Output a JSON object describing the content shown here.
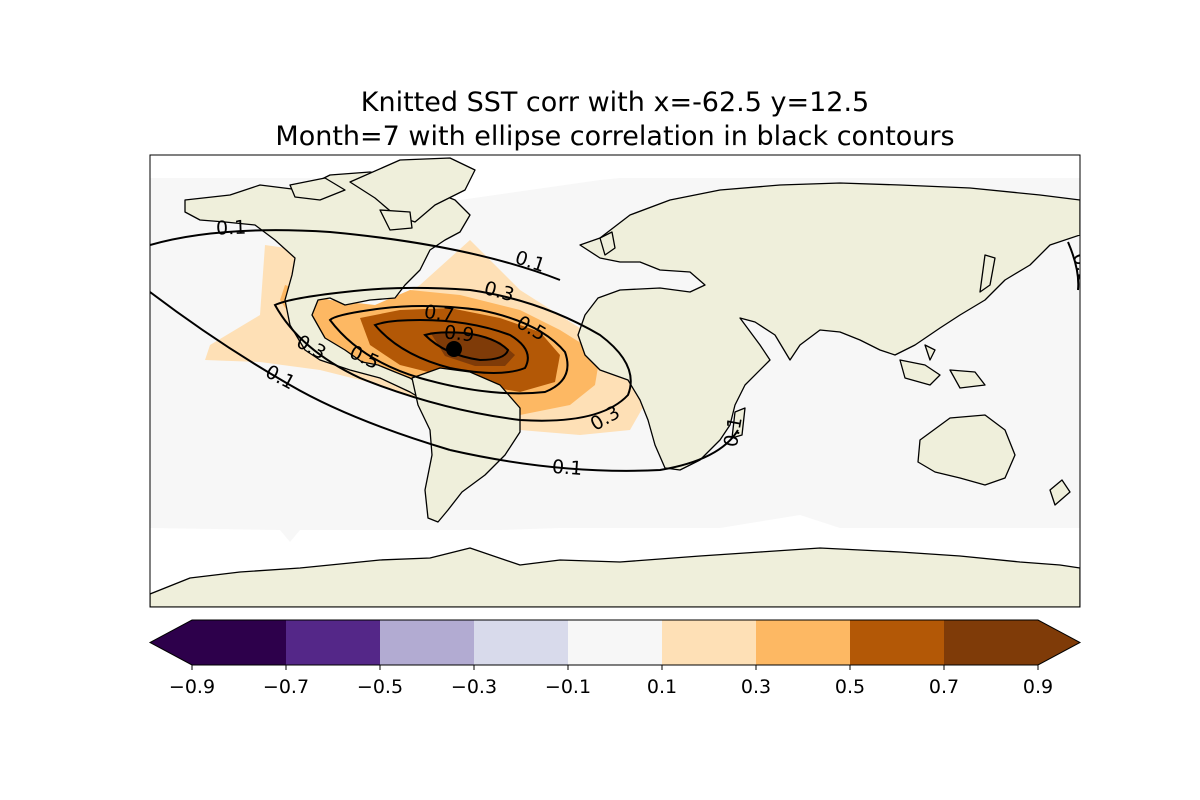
{
  "title": {
    "line1": "Knitted SST corr with x=-62.5 y=12.5",
    "line2": "Month=7 with ellipse correlation in black contours"
  },
  "map": {
    "projection": "PlateCarree",
    "lon_range": [
      -180,
      180
    ],
    "lat_range": [
      -90,
      90
    ],
    "land_color": "#efefdb",
    "ocean_fill_color": "#f7f7f7",
    "coastline_color": "#000000",
    "point_marker": {
      "lon": -62.5,
      "lat": 12.5,
      "color": "#000000"
    },
    "contour_color": "#000000",
    "contour_labels": [
      "0.1",
      "0.1",
      "0.1",
      "0.1",
      "0.1",
      "0.3",
      "0.3",
      "0.3",
      "0.5",
      "0.5",
      "0.7",
      "0.9",
      "0.1"
    ]
  },
  "colorbar": {
    "boundaries": [
      -0.9,
      -0.7,
      -0.5,
      -0.3,
      -0.1,
      0.1,
      0.3,
      0.5,
      0.7,
      0.9
    ],
    "tick_labels": [
      "−0.9",
      "−0.7",
      "−0.5",
      "−0.3",
      "−0.1",
      "0.1",
      "0.3",
      "0.5",
      "0.7",
      "0.9"
    ],
    "colors": [
      "#2d004b",
      "#542788",
      "#b2abd2",
      "#d8daeb",
      "#f7f7f7",
      "#fee0b6",
      "#fdb863",
      "#b35806",
      "#7f3b08"
    ],
    "extend": "both"
  }
}
